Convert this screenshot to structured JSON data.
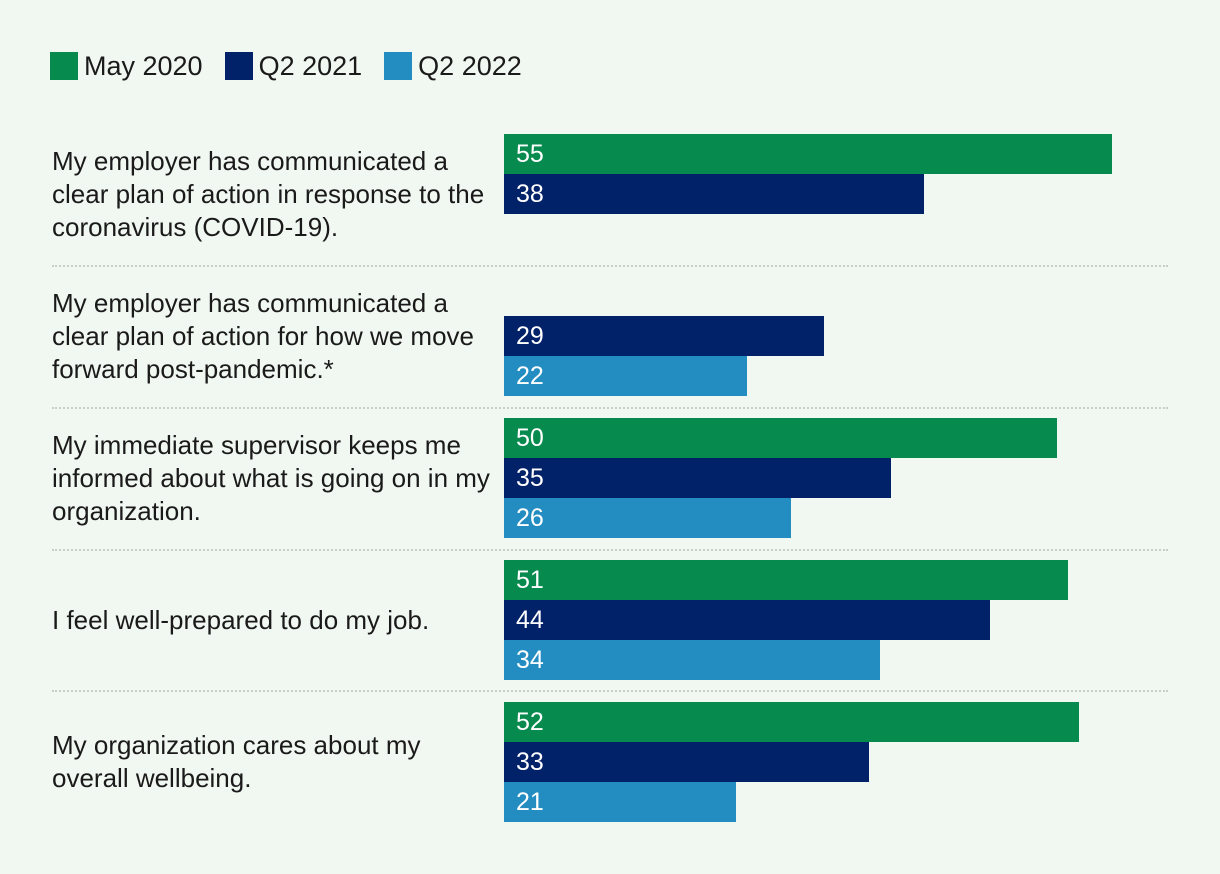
{
  "chart_data": {
    "type": "bar",
    "orientation": "horizontal",
    "legend_position": "top-left",
    "xlim": [
      0,
      55
    ],
    "categories": [
      "My employer has communicated a clear plan of action in response to the coronavirus (COVID-19).",
      "My employer has communicated a clear plan of action for how we move forward post-pandemic.*",
      "My immediate supervisor keeps me informed about what is going on in my organization.",
      "I feel well-prepared to do my job.",
      "My organization cares about my overall wellbeing."
    ],
    "series": [
      {
        "name": "May 2020",
        "color": "#068a4e",
        "values": [
          55,
          null,
          50,
          51,
          52
        ]
      },
      {
        "name": "Q2 2021",
        "color": "#012169",
        "values": [
          38,
          29,
          35,
          44,
          33
        ]
      },
      {
        "name": "Q2 2022",
        "color": "#238dc1",
        "values": [
          null,
          22,
          26,
          34,
          21
        ]
      }
    ]
  }
}
